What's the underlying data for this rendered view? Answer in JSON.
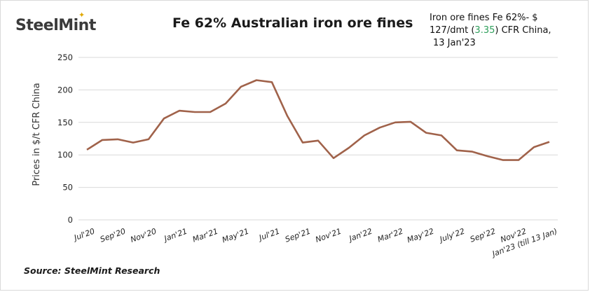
{
  "header": {
    "logo_text": "SteelMint",
    "title": "Fe 62% Australian iron ore fines",
    "note_prefix": "Iron ore fines Fe 62%- $ 127/dmt (",
    "note_change": "3.35",
    "note_suffix": ") CFR China,",
    "note_date": "13 Jan'23"
  },
  "footer": {
    "source": "Source: SteelMint Research"
  },
  "colors": {
    "line": "#a0624a",
    "grid": "#d9d9d9",
    "change_up": "#2e9f5b"
  },
  "chart_data": {
    "type": "line",
    "title": "Fe 62% Australian iron ore fines",
    "ylabel": "Prices in $/t CFR China",
    "xlabel": "",
    "ylim": [
      0,
      250
    ],
    "yticks": [
      0,
      50,
      100,
      150,
      200,
      250
    ],
    "grid": true,
    "categories": [
      "Jul'20",
      "Aug'20",
      "Sep'20",
      "Oct'20",
      "Nov'20",
      "Dec'20",
      "Jan'21",
      "Feb'21",
      "Mar'21",
      "Apr'21",
      "May'21",
      "Jun'21",
      "Jul'21",
      "Aug'21",
      "Sep'21",
      "Oct'21",
      "Nov'21",
      "Dec'21",
      "Jan'22",
      "Feb'22",
      "Mar'22",
      "Apr'22",
      "May'22",
      "Jun'22",
      "July'22",
      "Aug'22",
      "Sep'22",
      "Oct'22",
      "Nov'22",
      "Dec'22",
      "Jan'23 (till 13 Jan)"
    ],
    "x_tick_labels": [
      "Jul'20",
      "Sep'20",
      "Nov'20",
      "Jan'21",
      "Mar'21",
      "May'21",
      "Jul'21",
      "Sep'21",
      "Nov'21",
      "Jan'22",
      "Mar'22",
      "May'22",
      "July'22",
      "Sep'22",
      "Nov'22",
      "Jan'23  (till 13 Jan)"
    ],
    "series": [
      {
        "values": [
          108,
          123,
          124,
          119,
          124,
          156,
          168,
          166,
          166,
          179,
          205,
          215,
          212,
          160,
          119,
          122,
          95,
          111,
          130,
          142,
          150,
          151,
          134,
          130,
          107,
          105,
          98,
          92,
          92,
          112,
          120
        ]
      }
    ]
  }
}
